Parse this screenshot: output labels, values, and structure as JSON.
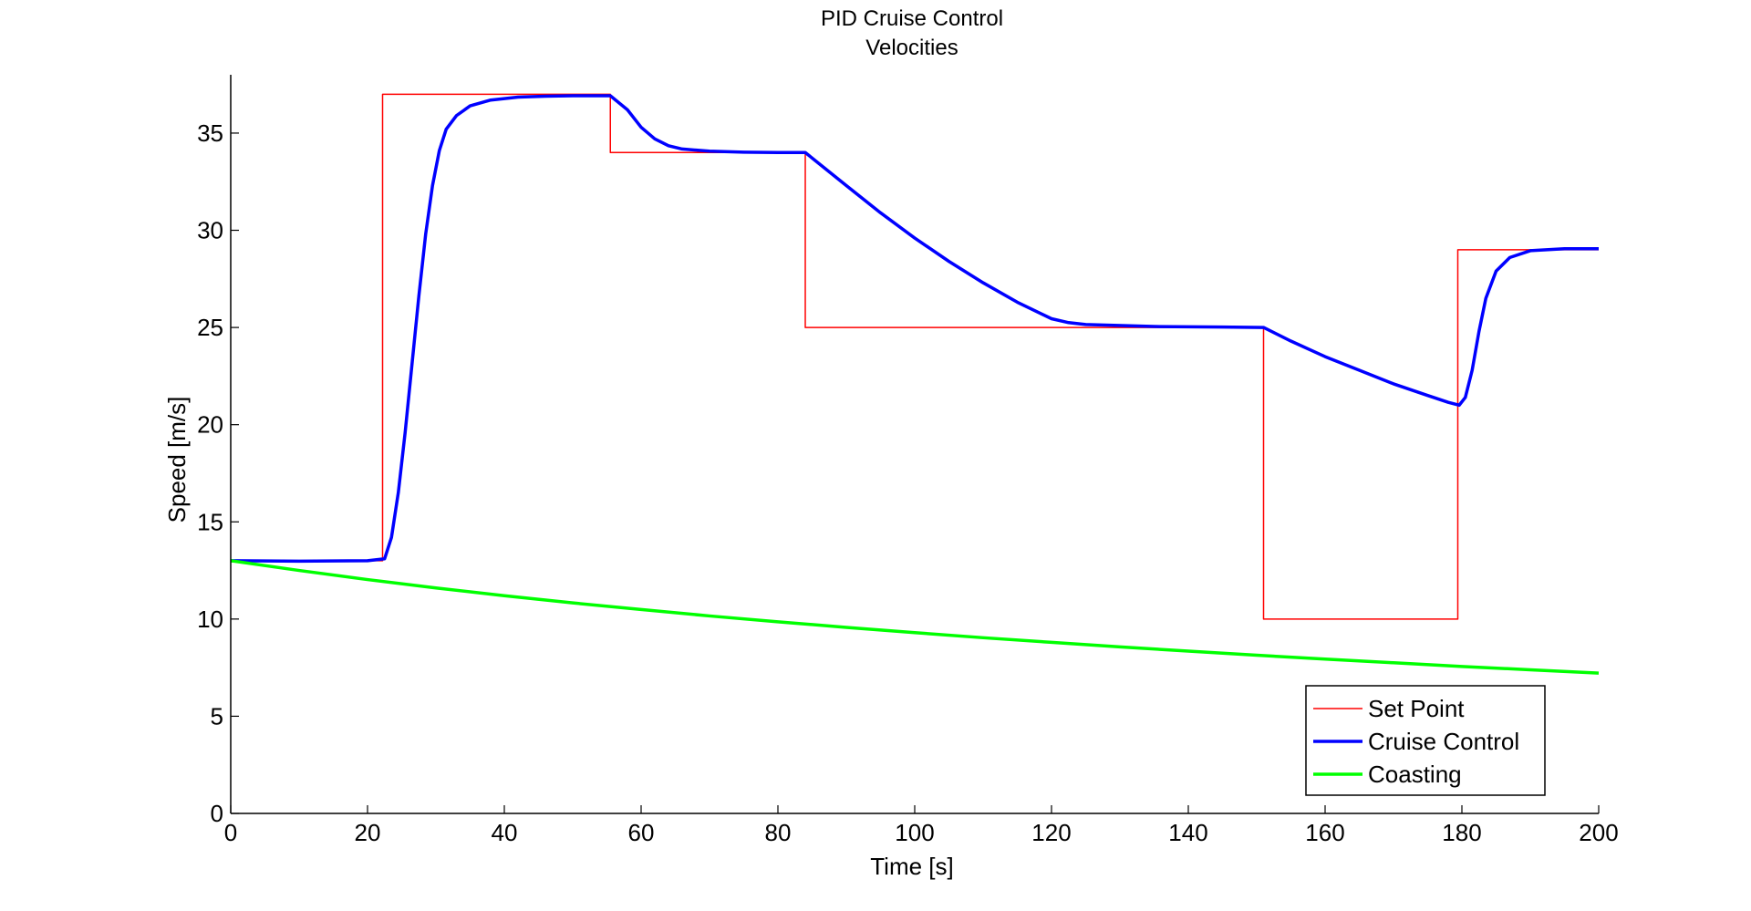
{
  "chart_data": {
    "type": "line",
    "title": [
      "PID Cruise Control",
      "Velocities"
    ],
    "xlabel": "Time [s]",
    "ylabel": "Speed [m/s]",
    "xlim": [
      0,
      200
    ],
    "ylim": [
      0,
      38
    ],
    "xticks": [
      0,
      20,
      40,
      60,
      80,
      100,
      120,
      140,
      160,
      180,
      200
    ],
    "yticks": [
      0,
      5,
      10,
      15,
      20,
      25,
      30,
      35
    ],
    "grid": false,
    "legend_position": "bottom-right",
    "series": [
      {
        "name": "Set Point",
        "color": "#ff0000",
        "line_width": "thin",
        "x": [
          0,
          22.2,
          22.2,
          55.5,
          55.5,
          84,
          84,
          151,
          151,
          179.4,
          179.4,
          200
        ],
        "y": [
          13,
          13,
          37,
          37,
          34,
          34,
          25,
          25,
          10,
          10,
          29,
          29
        ]
      },
      {
        "name": "Cruise Control",
        "color": "#0000ff",
        "line_width": "thick",
        "x": [
          0,
          10,
          20,
          22.5,
          23.5,
          24.5,
          25.5,
          26.5,
          27.5,
          28.5,
          29.5,
          30.5,
          31.5,
          33,
          35,
          38,
          42,
          46,
          50,
          55.5,
          58,
          60,
          62,
          64,
          66,
          70,
          75,
          80,
          84,
          90,
          95,
          100,
          105,
          110,
          115,
          120,
          122.5,
          125,
          135,
          145,
          151,
          155,
          160,
          165,
          170,
          175,
          178,
          179.6,
          180.5,
          181.5,
          182.5,
          183.5,
          185,
          187,
          190,
          195,
          200
        ],
        "y": [
          13,
          12.98,
          13,
          13.1,
          14.2,
          16.5,
          19.6,
          23.1,
          26.6,
          29.8,
          32.3,
          34.1,
          35.2,
          35.9,
          36.4,
          36.7,
          36.85,
          36.9,
          36.92,
          36.92,
          36.2,
          35.3,
          34.7,
          34.35,
          34.18,
          34.07,
          34.02,
          34.0,
          34.0,
          32.3,
          30.9,
          29.6,
          28.4,
          27.3,
          26.3,
          25.45,
          25.25,
          25.15,
          25.05,
          25.02,
          25.0,
          24.3,
          23.5,
          22.8,
          22.1,
          21.5,
          21.15,
          21.0,
          21.4,
          22.8,
          24.8,
          26.5,
          27.9,
          28.6,
          28.95,
          29.05,
          29.05
        ]
      },
      {
        "name": "Coasting",
        "color": "#00ff00",
        "line_width": "thick",
        "x": [
          0,
          10,
          20,
          30,
          40,
          50,
          60,
          70,
          80,
          90,
          100,
          110,
          120,
          130,
          140,
          150,
          160,
          170,
          180,
          190,
          200
        ],
        "y": [
          13.0,
          12.5,
          12.03,
          11.6,
          11.2,
          10.83,
          10.49,
          10.16,
          9.86,
          9.57,
          9.3,
          9.04,
          8.8,
          8.57,
          8.35,
          8.14,
          7.94,
          7.75,
          7.56,
          7.39,
          7.22
        ]
      }
    ]
  }
}
